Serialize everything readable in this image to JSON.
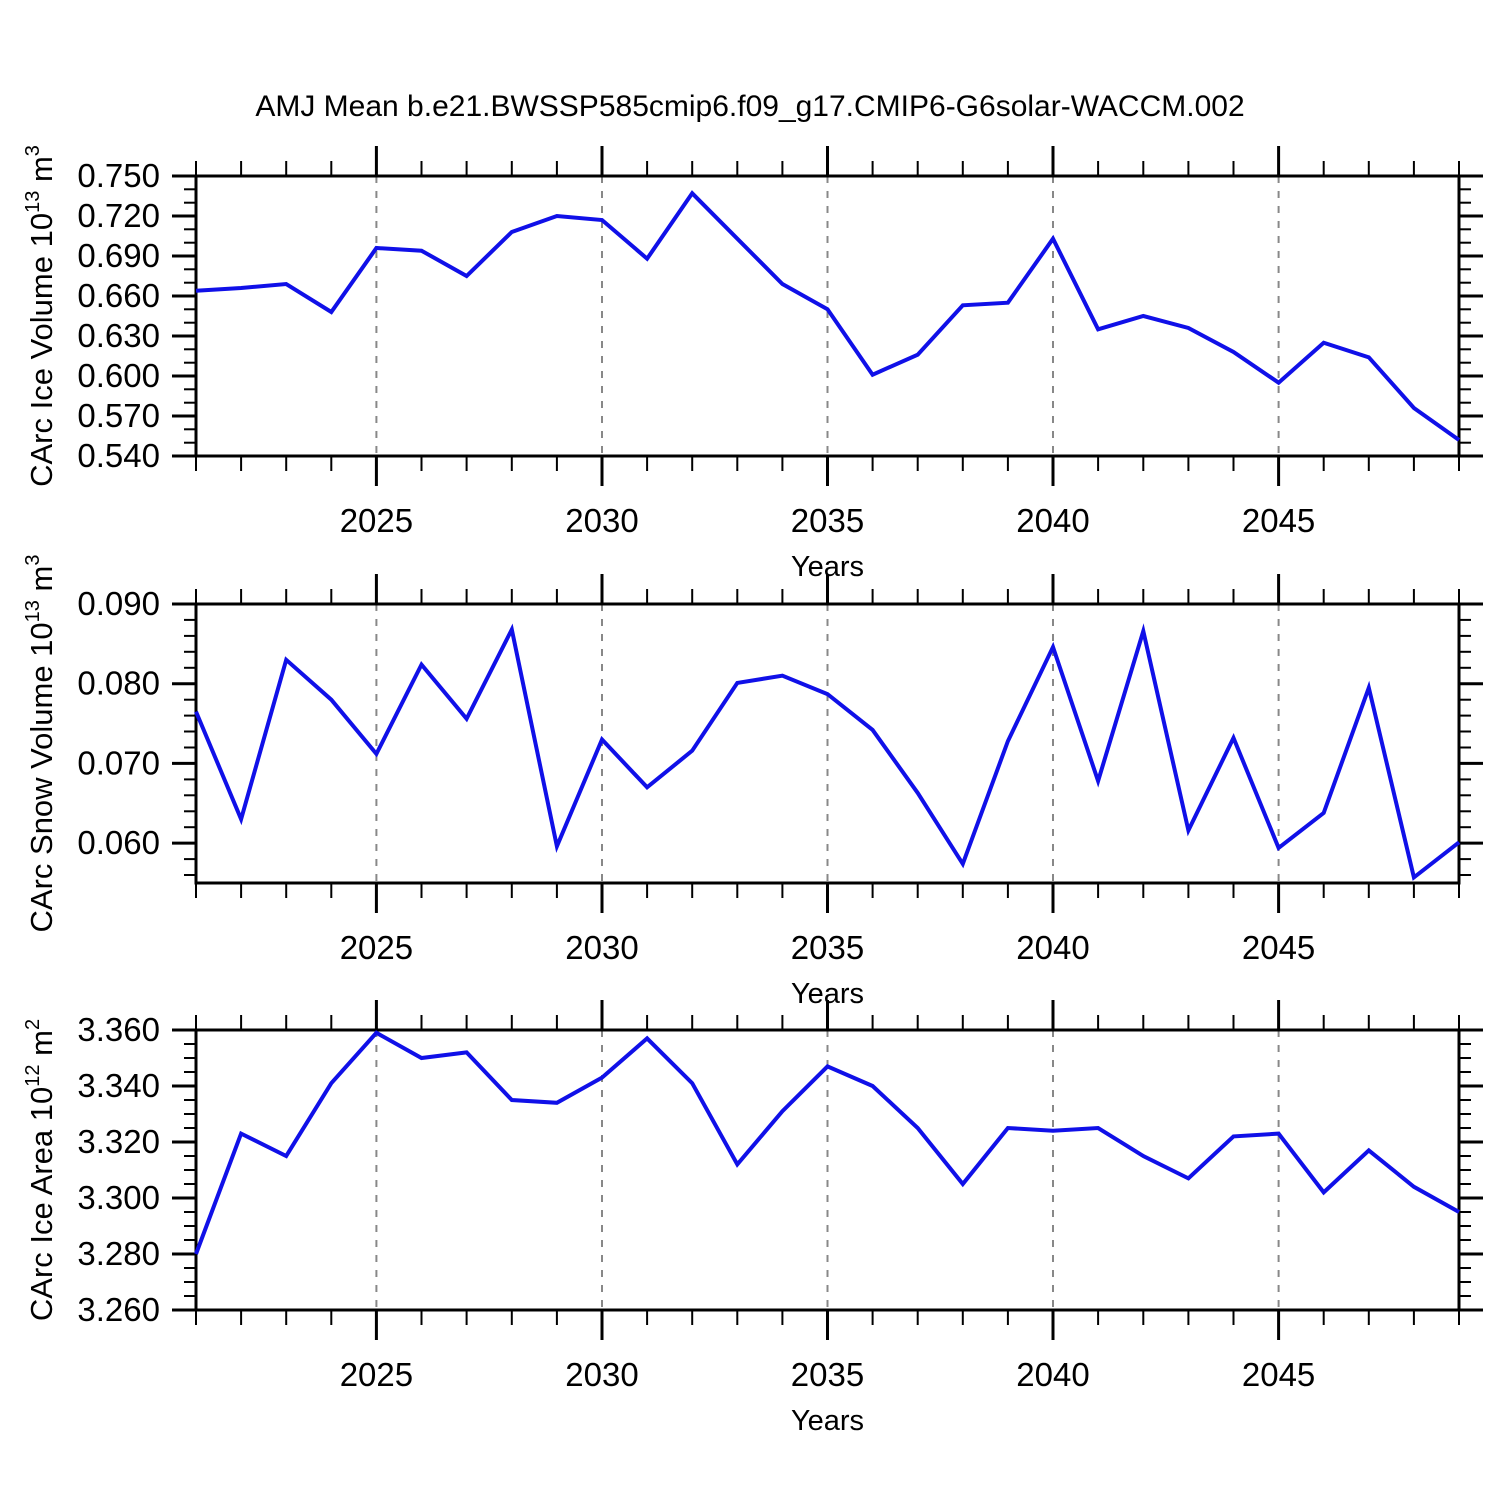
{
  "title": "AMJ Mean b.e21.BWSSP585cmip6.f09_g17.CMIP6-G6solar-WACCM.002",
  "colors": {
    "line": "#1010e8",
    "grid": "#888888",
    "axis": "#000000",
    "background": "#ffffff",
    "text": "#000000"
  },
  "chart_data": [
    {
      "type": "line",
      "name": "ice-volume",
      "ylabel": "CArc Ice Volume 10¹³ m³",
      "ylabel_parts": [
        {
          "text": "CArc Ice Volume 10"
        },
        {
          "text": "13",
          "sup": true
        },
        {
          "text": " m"
        },
        {
          "text": "3",
          "sup": true
        }
      ],
      "xlabel": "Years",
      "x": [
        2021,
        2022,
        2023,
        2024,
        2025,
        2026,
        2027,
        2028,
        2029,
        2030,
        2031,
        2032,
        2033,
        2034,
        2035,
        2036,
        2037,
        2038,
        2039,
        2040,
        2041,
        2042,
        2043,
        2044,
        2045,
        2046,
        2047,
        2048,
        2049
      ],
      "values": [
        0.664,
        0.666,
        0.669,
        0.648,
        0.696,
        0.694,
        0.675,
        0.708,
        0.72,
        0.717,
        0.688,
        0.737,
        0.703,
        0.669,
        0.65,
        0.601,
        0.616,
        0.653,
        0.655,
        0.703,
        0.635,
        0.645,
        0.636,
        0.618,
        0.595,
        0.625,
        0.614,
        0.576,
        0.552
      ],
      "ylim": [
        0.54,
        0.75
      ],
      "ymajor_start": 0.54,
      "ymajor_step": 0.03,
      "yminor_step": 0.01,
      "ytick_decimals": 3,
      "ytick_labels": [
        "0.540",
        "0.570",
        "0.600",
        "0.630",
        "0.660",
        "0.690",
        "0.720",
        "0.750"
      ],
      "xlim": [
        2021,
        2049
      ],
      "xticks": [
        2025,
        2030,
        2035,
        2040,
        2045
      ],
      "xtick_labels": [
        "2025",
        "2030",
        "2035",
        "2040",
        "2045"
      ],
      "xminor_step": 1,
      "grid": "vertical dashed lines at major x ticks",
      "legend": "none"
    },
    {
      "type": "line",
      "name": "snow-volume",
      "ylabel": "CArc Snow Volume 10¹³ m³",
      "ylabel_parts": [
        {
          "text": "CArc Snow Volume 10"
        },
        {
          "text": "13",
          "sup": true
        },
        {
          "text": " m"
        },
        {
          "text": "3",
          "sup": true
        }
      ],
      "xlabel": "Years",
      "x": [
        2021,
        2022,
        2023,
        2024,
        2025,
        2026,
        2027,
        2028,
        2029,
        2030,
        2031,
        2032,
        2033,
        2034,
        2035,
        2036,
        2037,
        2038,
        2039,
        2040,
        2041,
        2042,
        2043,
        2044,
        2045,
        2046,
        2047,
        2048,
        2049
      ],
      "values": [
        0.0765,
        0.063,
        0.083,
        0.078,
        0.0712,
        0.0824,
        0.0756,
        0.0868,
        0.0596,
        0.073,
        0.067,
        0.0716,
        0.0801,
        0.081,
        0.0787,
        0.0742,
        0.0663,
        0.0574,
        0.0728,
        0.0846,
        0.0678,
        0.0866,
        0.0616,
        0.0732,
        0.0594,
        0.0638,
        0.0795,
        0.0557,
        0.0601
      ],
      "ylim": [
        0.055,
        0.09
      ],
      "ymajor_start": 0.06,
      "ymajor_step": 0.01,
      "yminor_step": 0.002,
      "ytick_decimals": 3,
      "ytick_labels": [
        "0.060",
        "0.070",
        "0.080",
        "0.090"
      ],
      "xlim": [
        2021,
        2049
      ],
      "xticks": [
        2025,
        2030,
        2035,
        2040,
        2045
      ],
      "xtick_labels": [
        "2025",
        "2030",
        "2035",
        "2040",
        "2045"
      ],
      "xminor_step": 1,
      "grid": "vertical dashed lines at major x ticks",
      "legend": "none"
    },
    {
      "type": "line",
      "name": "ice-area",
      "ylabel": "CArc Ice Area 10¹² m²",
      "ylabel_parts": [
        {
          "text": "CArc Ice Area 10"
        },
        {
          "text": "12",
          "sup": true
        },
        {
          "text": " m"
        },
        {
          "text": "2",
          "sup": true
        }
      ],
      "xlabel": "Years",
      "x": [
        2021,
        2022,
        2023,
        2024,
        2025,
        2026,
        2027,
        2028,
        2029,
        2030,
        2031,
        2032,
        2033,
        2034,
        2035,
        2036,
        2037,
        2038,
        2039,
        2040,
        2041,
        2042,
        2043,
        2044,
        2045,
        2046,
        2047,
        2048,
        2049
      ],
      "values": [
        3.28,
        3.323,
        3.315,
        3.341,
        3.359,
        3.35,
        3.352,
        3.335,
        3.334,
        3.343,
        3.357,
        3.341,
        3.312,
        3.331,
        3.347,
        3.34,
        3.325,
        3.305,
        3.325,
        3.324,
        3.325,
        3.315,
        3.307,
        3.322,
        3.323,
        3.302,
        3.317,
        3.304,
        3.295
      ],
      "ylim": [
        3.26,
        3.36
      ],
      "ymajor_start": 3.26,
      "ymajor_step": 0.02,
      "yminor_step": 0.005,
      "ytick_decimals": 3,
      "ytick_labels": [
        "3.260",
        "3.280",
        "3.300",
        "3.320",
        "3.340",
        "3.360"
      ],
      "xlim": [
        2021,
        2049
      ],
      "xticks": [
        2025,
        2030,
        2035,
        2040,
        2045
      ],
      "xtick_labels": [
        "2025",
        "2030",
        "2035",
        "2040",
        "2045"
      ],
      "xminor_step": 1,
      "grid": "vertical dashed lines at major x ticks",
      "legend": "none"
    }
  ]
}
